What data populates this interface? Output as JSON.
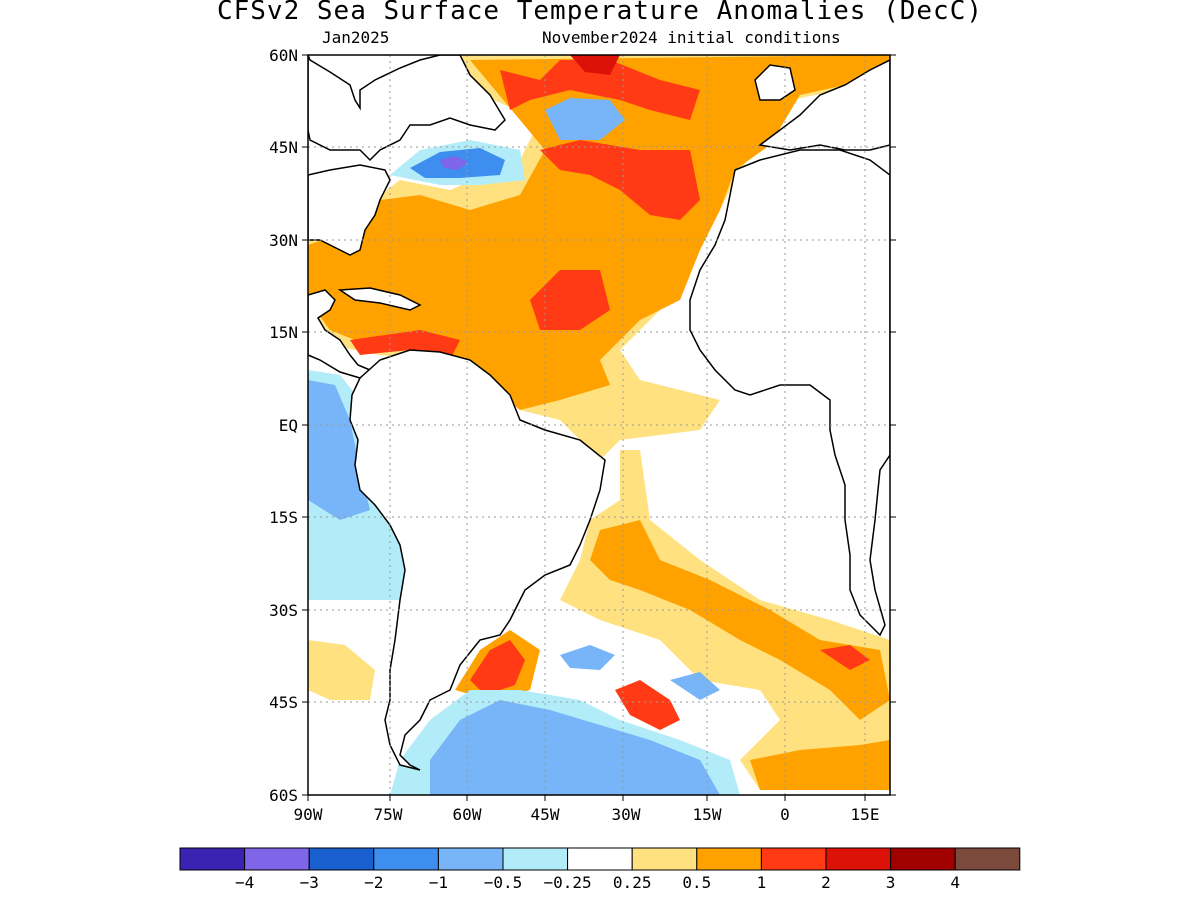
{
  "title": "CFSv2 Sea Surface Temperature Anomalies (DecC)",
  "subtitle_left": "Jan2025",
  "subtitle_right": "November2024 initial conditions",
  "map": {
    "lon_range": [
      -90,
      17
    ],
    "lat_range": [
      -60,
      60
    ],
    "lat_ticks": [
      {
        "value": 60,
        "label": "60N"
      },
      {
        "value": 45,
        "label": "45N"
      },
      {
        "value": 30,
        "label": "30N"
      },
      {
        "value": 15,
        "label": "15N"
      },
      {
        "value": 0,
        "label": "EQ"
      },
      {
        "value": -15,
        "label": "15S"
      },
      {
        "value": -30,
        "label": "30S"
      },
      {
        "value": -45,
        "label": "45S"
      },
      {
        "value": -60,
        "label": "60S"
      }
    ],
    "lon_ticks": [
      {
        "value": -90,
        "label": "90W"
      },
      {
        "value": -75,
        "label": "75W"
      },
      {
        "value": -60,
        "label": "60W"
      },
      {
        "value": -45,
        "label": "45W"
      },
      {
        "value": -30,
        "label": "30W"
      },
      {
        "value": -15,
        "label": "15W"
      },
      {
        "value": 0,
        "label": "0"
      },
      {
        "value": 15,
        "label": "15E"
      }
    ],
    "grid": true
  },
  "colorbar": {
    "colors": [
      "#3a22b3",
      "#7f66e8",
      "#1a5fcf",
      "#3e8ef0",
      "#78b4f8",
      "#b1ecf8",
      "#ffffff",
      "#ffe27f",
      "#ffa200",
      "#ff3a14",
      "#dc1209",
      "#a00000",
      "#7c4a3d"
    ],
    "labels": [
      "−4",
      "−3",
      "−2",
      "−1",
      "−0.5",
      "−0.25",
      "0.25",
      "0.5",
      "1",
      "2",
      "3",
      "4"
    ]
  }
}
